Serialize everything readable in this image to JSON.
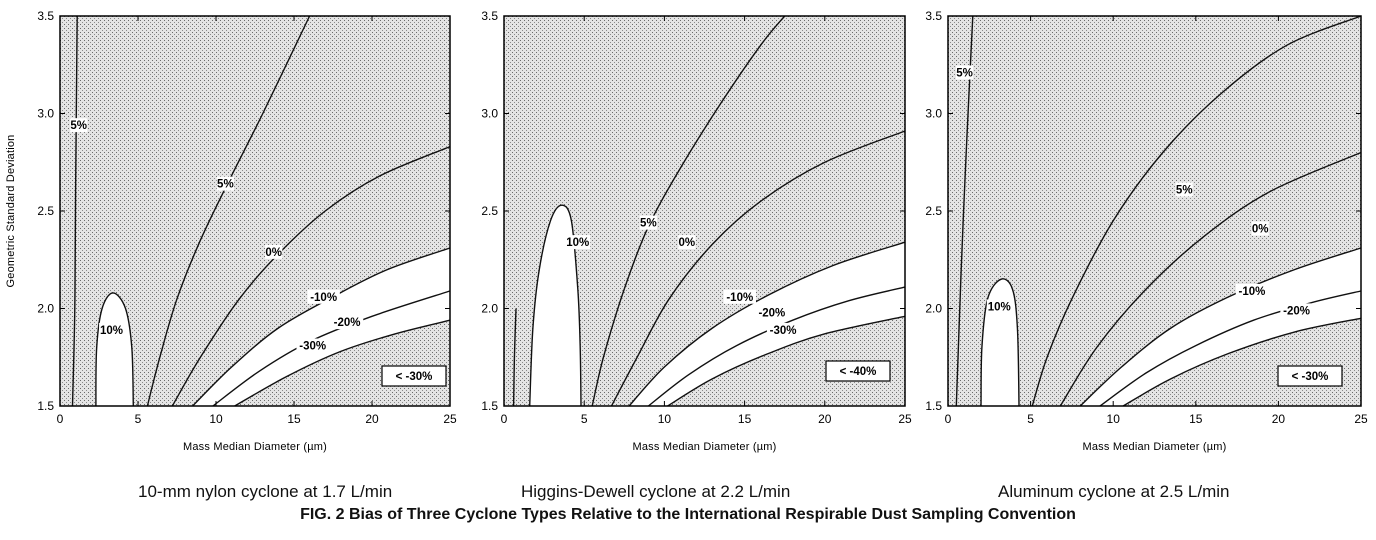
{
  "figure": {
    "title": "FIG. 2 Bias of Three Cyclone Types Relative to the International Respirable Dust Sampling Convention"
  },
  "chart_data": [
    {
      "type": "contour",
      "caption": "10-mm nylon cyclone at 1.7 L/min",
      "xlabel": "Mass Median Diameter (µm)",
      "ylabel": "Geometric Standard Deviation",
      "xlim": [
        0,
        25
      ],
      "ylim": [
        1.5,
        3.5
      ],
      "xticks": [
        "0",
        "5",
        "10",
        "15",
        "20",
        "25"
      ],
      "yticks": [
        "1.5",
        "2.0",
        "2.5",
        "3.0",
        "3.5"
      ],
      "region_label": "< -30%",
      "contours": [
        {
          "label": "5%",
          "points": [
            [
              0.8,
              1.5
            ],
            [
              0.95,
              2.0
            ],
            [
              1.0,
              2.6
            ],
            [
              1.1,
              3.5
            ]
          ]
        },
        {
          "label": "10%",
          "points": [
            [
              2.3,
              1.5
            ],
            [
              2.35,
              1.8
            ],
            [
              2.7,
              2.0
            ],
            [
              3.4,
              2.08
            ],
            [
              4.2,
              2.0
            ],
            [
              4.6,
              1.8
            ],
            [
              4.7,
              1.5
            ]
          ]
        },
        {
          "label": "5%",
          "points": [
            [
              5.6,
              1.5
            ],
            [
              6.4,
              1.75
            ],
            [
              7.5,
              2.05
            ],
            [
              9.0,
              2.35
            ],
            [
              10.8,
              2.65
            ],
            [
              13.0,
              3.0
            ],
            [
              16.0,
              3.5
            ]
          ]
        },
        {
          "label": "0%",
          "points": [
            [
              7.2,
              1.5
            ],
            [
              9.0,
              1.75
            ],
            [
              11.5,
              2.05
            ],
            [
              14.0,
              2.28
            ],
            [
              17.0,
              2.5
            ],
            [
              20.5,
              2.68
            ],
            [
              25.0,
              2.83
            ]
          ]
        },
        {
          "label": "-10%",
          "points": [
            [
              8.5,
              1.5
            ],
            [
              11.0,
              1.7
            ],
            [
              14.0,
              1.9
            ],
            [
              17.5,
              2.06
            ],
            [
              21.0,
              2.2
            ],
            [
              25.0,
              2.31
            ]
          ]
        },
        {
          "label": "-20%",
          "points": [
            [
              9.8,
              1.5
            ],
            [
              12.8,
              1.68
            ],
            [
              16.0,
              1.83
            ],
            [
              20.0,
              1.96
            ],
            [
              25.0,
              2.09
            ]
          ]
        },
        {
          "label": "-30%",
          "points": [
            [
              11.2,
              1.5
            ],
            [
              14.5,
              1.65
            ],
            [
              18.0,
              1.78
            ],
            [
              21.5,
              1.87
            ],
            [
              25.0,
              1.94
            ]
          ]
        }
      ],
      "contour_labels": [
        {
          "text": "5%",
          "x": 1.2,
          "y": 2.93
        },
        {
          "text": "10%",
          "x": 3.3,
          "y": 1.88
        },
        {
          "text": "5%",
          "x": 10.6,
          "y": 2.63
        },
        {
          "text": "0%",
          "x": 13.7,
          "y": 2.28
        },
        {
          "text": "-10%",
          "x": 16.9,
          "y": 2.05
        },
        {
          "text": "-20%",
          "x": 18.4,
          "y": 1.92
        },
        {
          "text": "-30%",
          "x": 16.2,
          "y": 1.8
        }
      ]
    },
    {
      "type": "contour",
      "caption": "Higgins-Dewell cyclone at 2.2 L/min",
      "xlabel": "Mass Median Diameter (µm)",
      "ylabel": "",
      "xlim": [
        0,
        25
      ],
      "ylim": [
        1.5,
        3.5
      ],
      "xticks": [
        "0",
        "5",
        "10",
        "15",
        "20",
        "25"
      ],
      "yticks": [
        "1.5",
        "2.0",
        "2.5",
        "3.0",
        "3.5"
      ],
      "region_label": "< -40%",
      "contours": [
        {
          "label": "",
          "points": [
            [
              0.6,
              1.5
            ],
            [
              0.65,
              1.75
            ],
            [
              0.75,
              2.0
            ]
          ]
        },
        {
          "label": "10%",
          "points": [
            [
              1.6,
              1.5
            ],
            [
              1.8,
              1.9
            ],
            [
              2.2,
              2.2
            ],
            [
              2.9,
              2.45
            ],
            [
              3.6,
              2.53
            ],
            [
              4.2,
              2.45
            ],
            [
              4.6,
              2.1
            ],
            [
              4.75,
              1.8
            ],
            [
              4.8,
              1.5
            ]
          ]
        },
        {
          "label": "5%",
          "points": [
            [
              5.5,
              1.5
            ],
            [
              6.2,
              1.75
            ],
            [
              7.5,
              2.1
            ],
            [
              9.0,
              2.42
            ],
            [
              11.0,
              2.72
            ],
            [
              13.5,
              3.05
            ],
            [
              16.0,
              3.35
            ],
            [
              17.5,
              3.5
            ]
          ]
        },
        {
          "label": "0%",
          "points": [
            [
              6.7,
              1.5
            ],
            [
              8.3,
              1.75
            ],
            [
              10.3,
              2.05
            ],
            [
              13.0,
              2.33
            ],
            [
              16.0,
              2.55
            ],
            [
              20.0,
              2.75
            ],
            [
              25.0,
              2.91
            ]
          ]
        },
        {
          "label": "-10%",
          "points": [
            [
              7.8,
              1.5
            ],
            [
              10.0,
              1.7
            ],
            [
              13.0,
              1.9
            ],
            [
              16.5,
              2.07
            ],
            [
              20.5,
              2.22
            ],
            [
              25.0,
              2.34
            ]
          ]
        },
        {
          "label": "-20%",
          "points": [
            [
              9.0,
              1.5
            ],
            [
              11.5,
              1.66
            ],
            [
              14.5,
              1.81
            ],
            [
              18.0,
              1.94
            ],
            [
              21.5,
              2.04
            ],
            [
              25.0,
              2.11
            ]
          ]
        },
        {
          "label": "-30%",
          "points": [
            [
              10.2,
              1.5
            ],
            [
              13.0,
              1.64
            ],
            [
              16.5,
              1.77
            ],
            [
              20.0,
              1.87
            ],
            [
              25.0,
              1.96
            ]
          ]
        }
      ],
      "contour_labels": [
        {
          "text": "10%",
          "x": 4.6,
          "y": 2.33
        },
        {
          "text": "5%",
          "x": 9.0,
          "y": 2.43
        },
        {
          "text": "0%",
          "x": 11.4,
          "y": 2.33
        },
        {
          "text": "-10%",
          "x": 14.7,
          "y": 2.05
        },
        {
          "text": "-20%",
          "x": 16.7,
          "y": 1.97
        },
        {
          "text": "-30%",
          "x": 17.4,
          "y": 1.88
        }
      ]
    },
    {
      "type": "contour",
      "caption": "Aluminum cyclone at 2.5 L/min",
      "xlabel": "Mass Median Diameter (µm)",
      "ylabel": "",
      "xlim": [
        0,
        25
      ],
      "ylim": [
        1.5,
        3.5
      ],
      "xticks": [
        "0",
        "5",
        "10",
        "15",
        "20",
        "25"
      ],
      "yticks": [
        "1.5",
        "2.0",
        "2.5",
        "3.0",
        "3.5"
      ],
      "region_label": "< -30%",
      "contours": [
        {
          "label": "5%",
          "points": [
            [
              0.5,
              1.5
            ],
            [
              0.8,
              2.2
            ],
            [
              1.1,
              2.8
            ],
            [
              1.5,
              3.5
            ]
          ]
        },
        {
          "label": "10%",
          "points": [
            [
              2.0,
              1.5
            ],
            [
              2.05,
              1.8
            ],
            [
              2.4,
              2.05
            ],
            [
              3.2,
              2.15
            ],
            [
              3.9,
              2.1
            ],
            [
              4.2,
              1.9
            ],
            [
              4.3,
              1.5
            ]
          ]
        },
        {
          "label": "5%",
          "points": [
            [
              5.1,
              1.5
            ],
            [
              6.0,
              1.75
            ],
            [
              7.5,
              2.05
            ],
            [
              10.0,
              2.45
            ],
            [
              13.0,
              2.8
            ],
            [
              16.5,
              3.1
            ],
            [
              20.5,
              3.35
            ],
            [
              25.0,
              3.5
            ]
          ]
        },
        {
          "label": "0%",
          "points": [
            [
              6.8,
              1.5
            ],
            [
              9.0,
              1.8
            ],
            [
              12.0,
              2.1
            ],
            [
              15.5,
              2.37
            ],
            [
              19.5,
              2.6
            ],
            [
              25.0,
              2.8
            ]
          ]
        },
        {
          "label": "-10%",
          "points": [
            [
              8.0,
              1.5
            ],
            [
              10.5,
              1.7
            ],
            [
              13.5,
              1.9
            ],
            [
              17.0,
              2.06
            ],
            [
              21.0,
              2.2
            ],
            [
              25.0,
              2.31
            ]
          ]
        },
        {
          "label": "-20%",
          "points": [
            [
              9.2,
              1.5
            ],
            [
              12.0,
              1.67
            ],
            [
              15.0,
              1.81
            ],
            [
              18.5,
              1.94
            ],
            [
              22.0,
              2.03
            ],
            [
              25.0,
              2.09
            ]
          ]
        },
        {
          "label": "-30%",
          "points": [
            [
              10.6,
              1.5
            ],
            [
              13.5,
              1.64
            ],
            [
              17.0,
              1.77
            ],
            [
              21.0,
              1.88
            ],
            [
              25.0,
              1.95
            ]
          ]
        }
      ],
      "contour_labels": [
        {
          "text": "5%",
          "x": 1.0,
          "y": 3.2
        },
        {
          "text": "10%",
          "x": 3.1,
          "y": 2.0
        },
        {
          "text": "5%",
          "x": 14.3,
          "y": 2.6
        },
        {
          "text": "0%",
          "x": 18.9,
          "y": 2.4
        },
        {
          "text": "-10%",
          "x": 18.4,
          "y": 2.08
        },
        {
          "text": "-20%",
          "x": 21.1,
          "y": 1.98
        }
      ]
    }
  ]
}
